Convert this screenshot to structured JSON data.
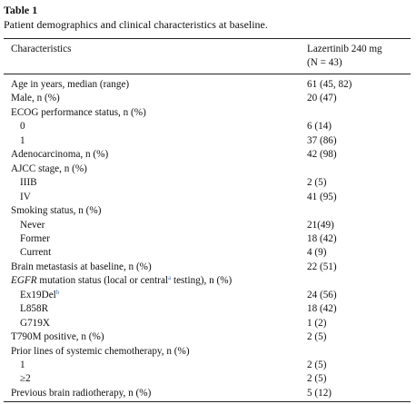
{
  "header": {
    "label": "Table 1",
    "caption": "Patient demographics and clinical characteristics at baseline."
  },
  "table": {
    "columns": [
      "Characteristics",
      [
        "Lazertinib 240 mg",
        "(N = 43)"
      ]
    ],
    "rows": [
      [
        "Age in years, median (range)",
        "61 (45, 82)"
      ],
      [
        "Male, n (%)",
        "20 (47)"
      ],
      [
        "ECOG performance status, n (%)"
      ],
      [
        "0",
        "6 (14)"
      ],
      [
        "1",
        "37 (86)"
      ],
      [
        "Adenocarcinoma, n (%)",
        "42 (98)"
      ],
      [
        "AJCC stage, n (%)"
      ],
      [
        "IIIB",
        "2 (5)"
      ],
      [
        "IV",
        "41 (95)"
      ],
      [
        "Smoking status, n (%)"
      ],
      [
        "Never",
        "21(49)"
      ],
      [
        "Former",
        "18 (42)"
      ],
      [
        "Current",
        "4 (9)"
      ],
      [
        "Brain metastasis at baseline, n (%)",
        "22 (51)"
      ],
      [
        [
          "EGFR",
          " mutation status (local or central",
          "a",
          " testing), n (%)"
        ]
      ],
      [
        [
          "Ex19Del",
          "b"
        ],
        "24 (56)"
      ],
      [
        "L858R",
        "18 (42)"
      ],
      [
        "G719X",
        "1 (2)"
      ],
      [
        "T790M positive, n (%)",
        "2 (5)"
      ],
      [
        "Prior lines of systemic chemotherapy, n (%)"
      ],
      [
        "1",
        "2 (5)"
      ],
      [
        "≥2",
        "2 (5)"
      ],
      [
        "Previous brain radiotherapy, n (%)",
        "5 (12)"
      ]
    ]
  }
}
